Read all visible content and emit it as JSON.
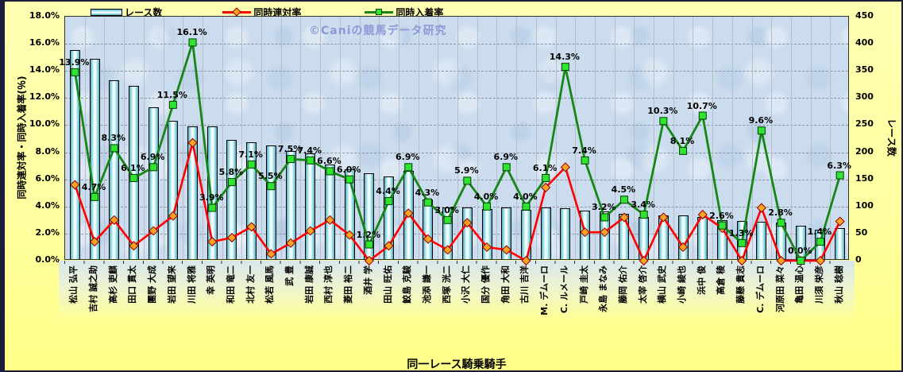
{
  "watermark": "©Caniの競馬データ研究",
  "legend": [
    {
      "label": "レース数",
      "type": "bar"
    },
    {
      "label": "同時連対率",
      "type": "line-diamond"
    },
    {
      "label": "同時入着率",
      "type": "line-square"
    }
  ],
  "left_axis": {
    "title": "同時連対率・同時入着率(％)",
    "ticks": [
      "18.0%",
      "16.0%",
      "14.0%",
      "12.0%",
      "10.0%",
      "8.0%",
      "6.0%",
      "4.0%",
      "2.0%",
      "0.0%"
    ],
    "min": 0,
    "max": 18
  },
  "right_axis": {
    "title": "レース数",
    "ticks": [
      "450",
      "400",
      "350",
      "300",
      "250",
      "200",
      "150",
      "100",
      "50",
      "0"
    ],
    "min": 0,
    "max": 450
  },
  "x_axis": {
    "title": "同一レース騎乗騎手"
  },
  "chart_data": {
    "type": "bar+line combo",
    "title": "",
    "xlabel": "同一レース騎乗騎手",
    "left_ylabel": "同時連対率・同時入着率(％)",
    "right_ylabel": "レース数",
    "left_ylim": [
      0,
      18
    ],
    "right_ylim": [
      0,
      450
    ],
    "grid": true,
    "legend_position": "top",
    "categories": [
      "松山 弘平",
      "吉村 誠之助",
      "高杉 吏麒",
      "田口 貫太",
      "團野 大成",
      "岩田 望来",
      "川田 将雅",
      "幸 英明",
      "和田 竜二",
      "北村 友一",
      "松若 風馬",
      "武 豊",
      "岩田 康誠",
      "西村 淳也",
      "菱田 裕二",
      "酒井 学",
      "田山 旺佑",
      "鮫島 克駿",
      "池添 謙一",
      "西塚 洸二",
      "小沢 大仁",
      "国分 優作",
      "角田 大和",
      "古川 吉洋",
      "M. デムーロ",
      "C. ルメール",
      "戸崎 圭太",
      "永島 まなみ",
      "藤岡 佑介",
      "太宰 啓介",
      "横山 武史",
      "小崎 綾也",
      "浜中 俊",
      "高倉 稜",
      "藤懸 貴志",
      "C. デムーロ",
      "河原田 菜々",
      "亀田 温心",
      "川須 栄彦",
      "秋山 稔樹"
    ],
    "series": [
      {
        "name": "レース数",
        "type": "bar",
        "axis": "right",
        "values": [
          385,
          370,
          330,
          320,
          280,
          255,
          245,
          245,
          220,
          215,
          210,
          200,
          195,
          175,
          165,
          158,
          152,
          162,
          110,
          95,
          95,
          93,
          95,
          91,
          95,
          94,
          89,
          88,
          84,
          78,
          81,
          81,
          78,
          72,
          70,
          69,
          67,
          62,
          54,
          57
        ]
      },
      {
        "name": "同時連対率",
        "type": "line",
        "marker": "diamond",
        "axis": "left",
        "values": [
          5.6,
          1.4,
          3.0,
          1.1,
          2.2,
          3.3,
          8.7,
          1.4,
          1.7,
          2.5,
          0.5,
          1.3,
          2.2,
          3.0,
          1.9,
          0.0,
          1.1,
          3.5,
          1.6,
          0.8,
          2.8,
          1.0,
          0.8,
          0.0,
          5.4,
          6.9,
          2.1,
          2.1,
          3.2,
          0.0,
          3.2,
          1.0,
          3.4,
          2.4,
          0.0,
          3.9,
          0.0,
          0.0,
          0.0,
          2.9
        ]
      },
      {
        "name": "同時入着率",
        "type": "line",
        "marker": "square",
        "axis": "left",
        "values": [
          13.9,
          4.7,
          8.3,
          6.1,
          6.9,
          11.5,
          16.1,
          3.9,
          5.8,
          7.1,
          5.5,
          7.5,
          7.4,
          6.6,
          6.0,
          1.2,
          4.4,
          6.9,
          4.3,
          3.0,
          5.9,
          4.0,
          6.9,
          4.0,
          6.1,
          14.3,
          7.4,
          3.2,
          4.5,
          3.4,
          10.3,
          8.1,
          10.7,
          2.6,
          1.3,
          9.6,
          2.8,
          0.0,
          1.4,
          6.3
        ],
        "labels": [
          "13.9%",
          "4.7%",
          "8.3%",
          "6.1%",
          "6.9%",
          "11.5%",
          "16.1%",
          "3.9%",
          "5.8%",
          "7.1%",
          "5.5%",
          "7.5%",
          "7.4%",
          "6.6%",
          "6.0%",
          "1.2%",
          "4.4%",
          "6.9%",
          "4.3%",
          "3.0%",
          "5.9%",
          "4.0%",
          "6.9%",
          "4.0%",
          "6.1%",
          "14.3%",
          "7.4%",
          "3.2%",
          "4.5%",
          "3.4%",
          "10.3%",
          "8.1%",
          "10.7%",
          "2.6%",
          "1.3%",
          "9.6%",
          "2.8%",
          "0.0%",
          "1.4%",
          "6.3%"
        ]
      }
    ]
  },
  "colors": {
    "background": "#FFFFA2",
    "plot_background": "#CBDCEE",
    "bar_fill_center": "#FFFFFF",
    "bar_fill_edge": "#49B2C0",
    "bar_border": "#000000",
    "red_line": "#FF0000",
    "red_marker": "#FFA224",
    "green_line": "#168616",
    "green_marker": "#2FE52F",
    "grid": "#8A94A0",
    "watermark": "#8D98D8"
  }
}
